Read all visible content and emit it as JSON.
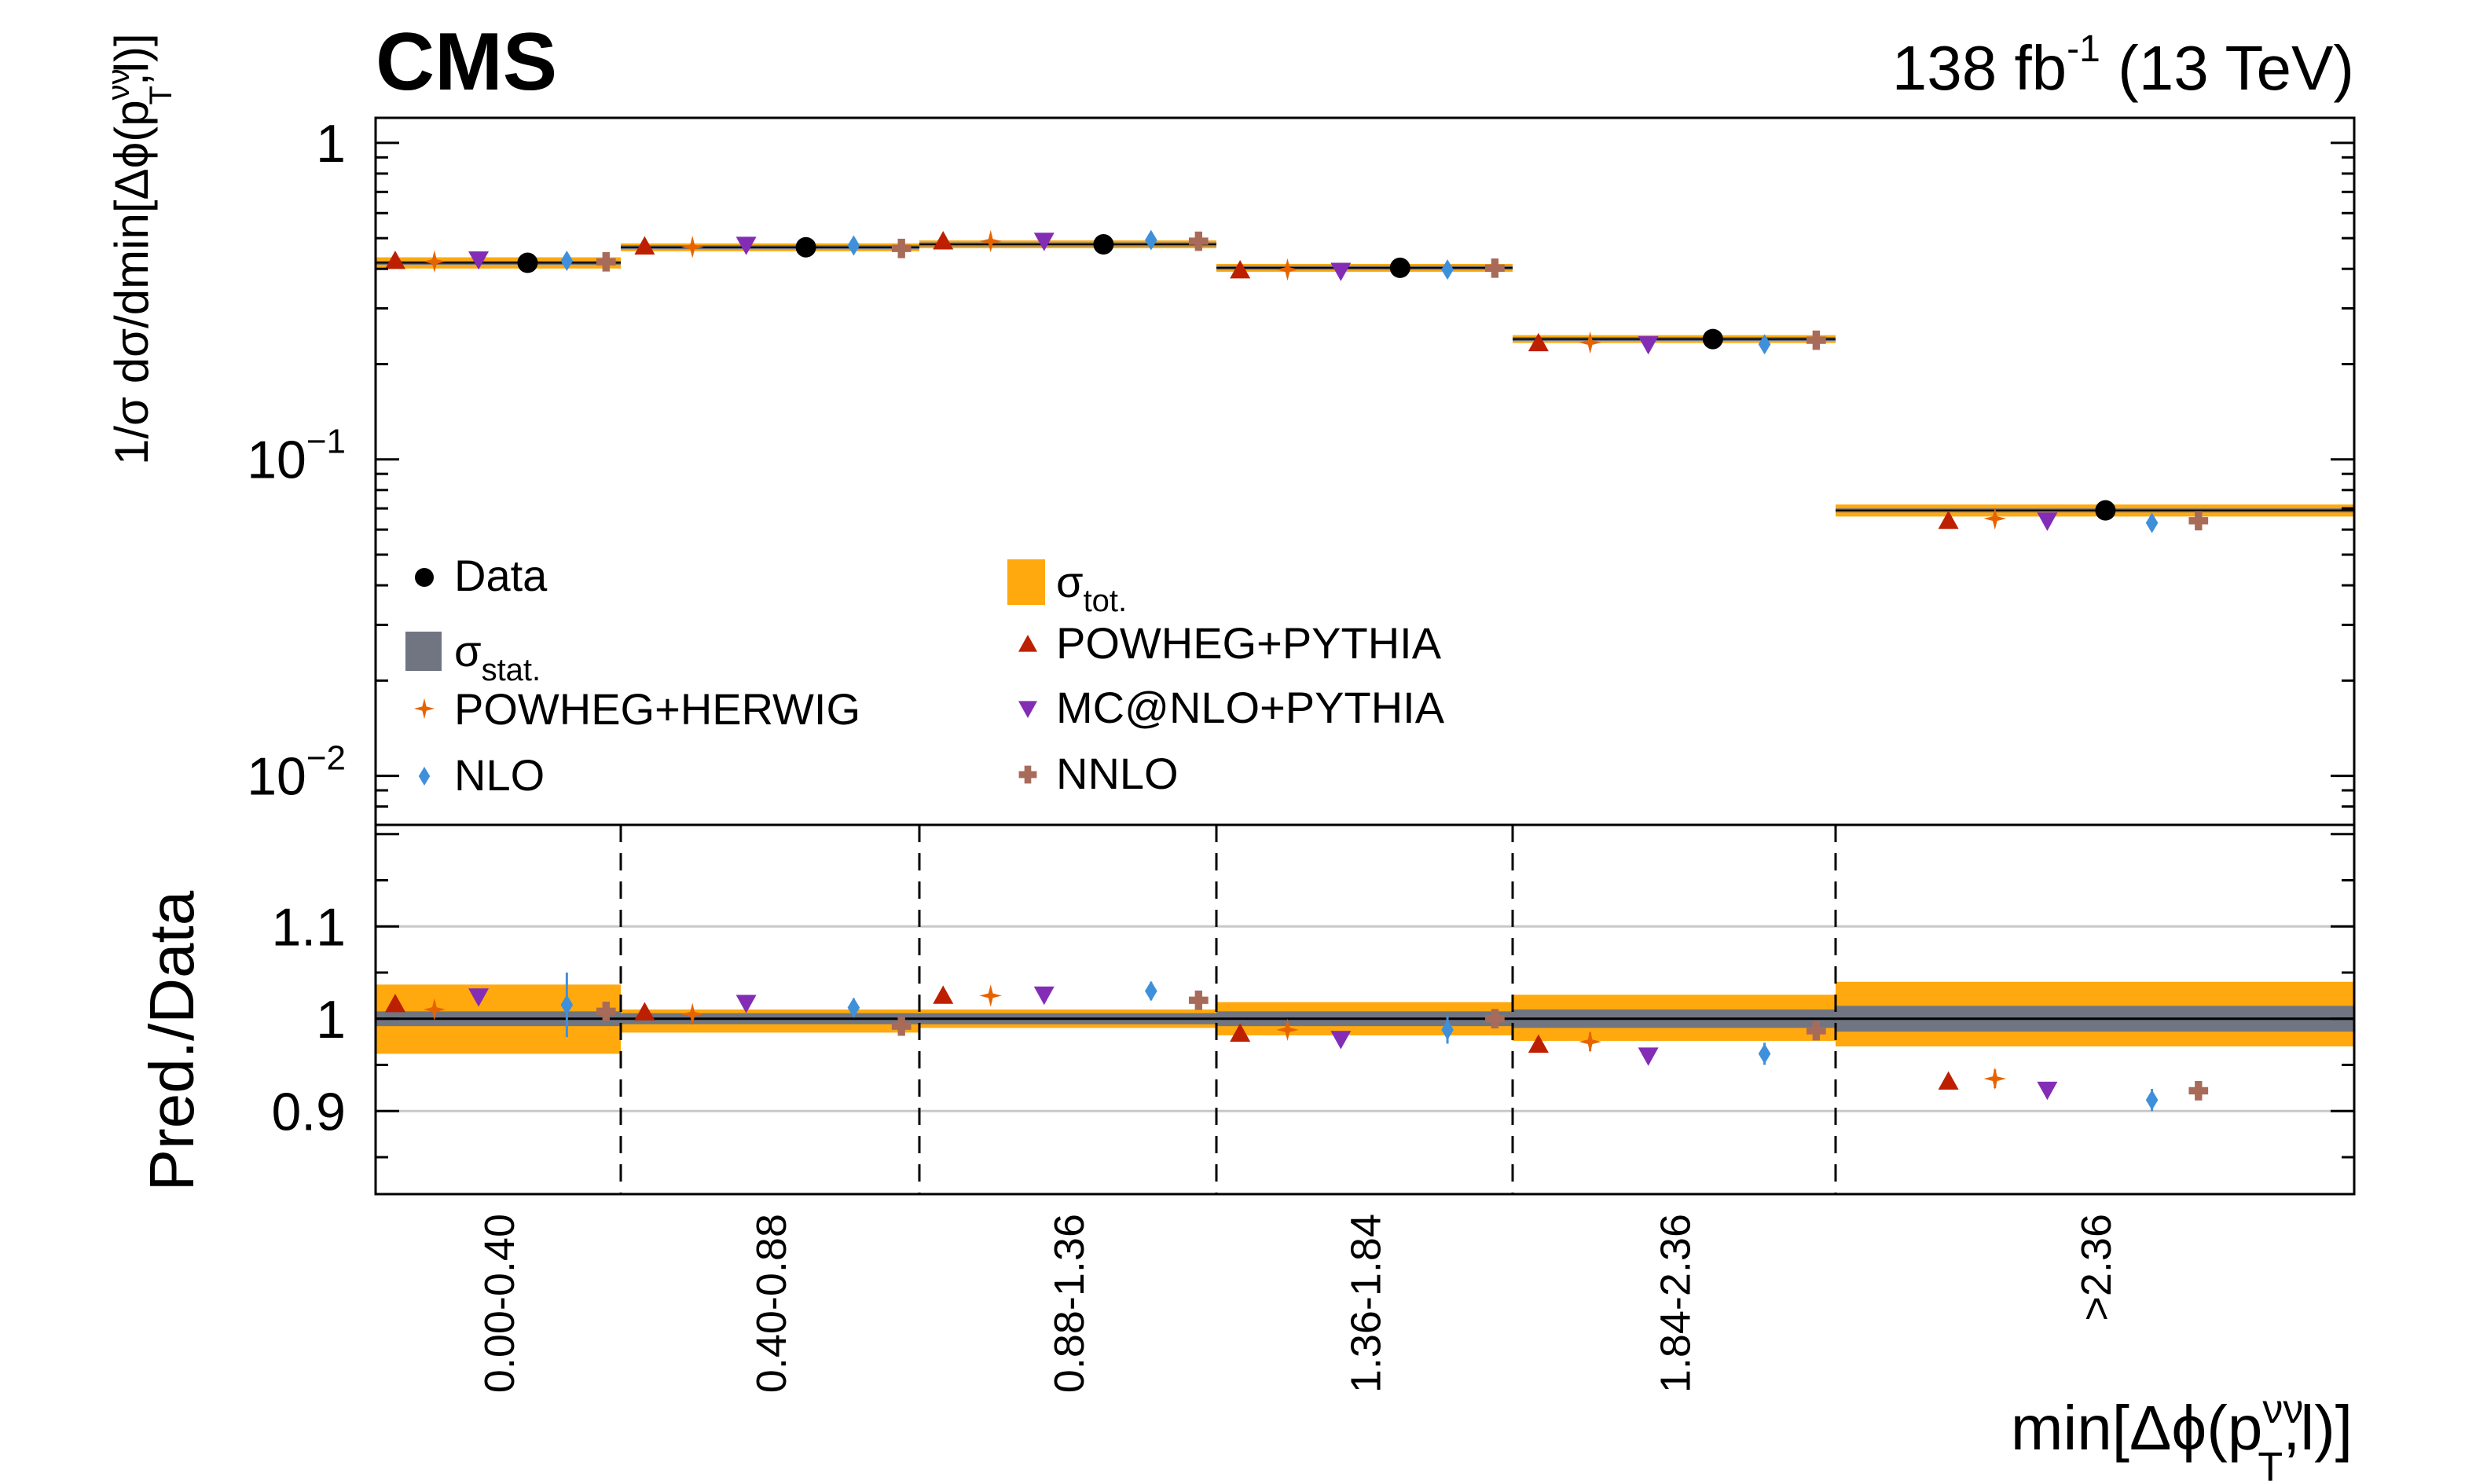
{
  "header": {
    "experiment": "CMS",
    "lumi_value": "138 fb",
    "lumi_exp": "-1",
    "energy": "(13 TeV)"
  },
  "colors": {
    "tot": "#FFA90E",
    "stat": "#717581",
    "data": "#000000",
    "POWHEG+PYTHIA": "#BD1F01",
    "POWHEG+HERWIG": "#E76300",
    "MC@NLO+PYTHIA": "#832DB6",
    "NLO": "#3F90DA",
    "NNLO": "#A96B59",
    "refline": "#c8c8c8"
  },
  "chart_data": [
    {
      "panel": "upper",
      "type": "scatter",
      "yscale": "log",
      "ylim": [
        0.007,
        1.2
      ],
      "yticks": [
        {
          "value": 1,
          "label": "1"
        },
        {
          "value": 0.1,
          "label": "10",
          "exp": "−1"
        },
        {
          "value": 0.01,
          "label": "10",
          "exp": "−2"
        }
      ],
      "ylabel": {
        "main": "1/σ dσ/dmin[Δϕ(p",
        "sup": "νν",
        "sub": "T",
        "tail": ",l)]"
      },
      "bins": [
        "0.00-0.40",
        "0.40-0.88",
        "0.88-1.36",
        "1.36-1.84",
        "1.84-2.36",
        ">2.36"
      ],
      "data": [
        0.418,
        0.468,
        0.478,
        0.403,
        0.24,
        0.069
      ],
      "tot_band": [
        0.017,
        0.006,
        0.005,
        0.009,
        0.005,
        0.003
      ],
      "stat_band": [
        0.004,
        0.003,
        0.003,
        0.003,
        0.002,
        0.001
      ],
      "series": [
        {
          "name": "POWHEG+PYTHIA",
          "marker": "triangle-up",
          "values": [
            0.424,
            0.471,
            0.489,
            0.396,
            0.233,
            0.064
          ]
        },
        {
          "name": "POWHEG+HERWIG",
          "marker": "star",
          "values": [
            0.422,
            0.469,
            0.489,
            0.398,
            0.234,
            0.065
          ]
        },
        {
          "name": "MC@NLO+PYTHIA",
          "marker": "triangle-down",
          "values": [
            0.428,
            0.476,
            0.49,
            0.394,
            0.231,
            0.064
          ]
        },
        {
          "name": "NLO",
          "marker": "diamond",
          "values": [
            0.424,
            0.474,
            0.493,
            0.398,
            0.231,
            0.063
          ]
        },
        {
          "name": "NNLO",
          "marker": "plus",
          "values": [
            0.421,
            0.464,
            0.489,
            0.402,
            0.238,
            0.064
          ]
        }
      ]
    },
    {
      "panel": "lower",
      "type": "scatter",
      "ylabel": "Pred./Data",
      "ylim": [
        0.81,
        1.21
      ],
      "yticks": [
        {
          "value": 1.1,
          "label": "1.1"
        },
        {
          "value": 1.0,
          "label": "1"
        },
        {
          "value": 0.9,
          "label": "0.9"
        }
      ],
      "xlabel": {
        "main": "min[Δϕ(p",
        "sup": "νν",
        "sub": "T",
        "tail": ",l)]"
      },
      "bins": [
        "0.00-0.40",
        "0.40-0.88",
        "0.88-1.36",
        "1.36-1.84",
        "1.84-2.36",
        ">2.36"
      ],
      "tot_band": [
        [
          0.962,
          1.037
        ],
        [
          0.985,
          1.01
        ],
        [
          0.99,
          1.01
        ],
        [
          0.982,
          1.018
        ],
        [
          0.976,
          1.026
        ],
        [
          0.97,
          1.04
        ]
      ],
      "stat_band": [
        [
          0.992,
          1.008
        ],
        [
          0.994,
          1.006
        ],
        [
          0.994,
          1.006
        ],
        [
          0.992,
          1.008
        ],
        [
          0.99,
          1.01
        ],
        [
          0.986,
          1.014
        ]
      ],
      "series": [
        {
          "name": "POWHEG+PYTHIA",
          "marker": "triangle-up",
          "values": [
            1.016,
            1.007,
            1.025,
            0.984,
            0.972,
            0.932
          ],
          "err": [
            0,
            0,
            0,
            0,
            0,
            0
          ]
        },
        {
          "name": "POWHEG+HERWIG",
          "marker": "star",
          "values": [
            1.01,
            1.005,
            1.025,
            0.988,
            0.975,
            0.935
          ],
          "err": [
            0.008,
            0.006,
            0.006,
            0.006,
            0.01,
            0.01
          ]
        },
        {
          "name": "MC@NLO+PYTHIA",
          "marker": "triangle-down",
          "values": [
            1.024,
            1.017,
            1.026,
            0.978,
            0.96,
            0.923
          ],
          "err": [
            0,
            0,
            0,
            0,
            0,
            0
          ]
        },
        {
          "name": "NLO",
          "marker": "diamond",
          "values": [
            1.015,
            1.012,
            1.03,
            0.988,
            0.962,
            0.912
          ],
          "err": [
            0.035,
            0.01,
            0.01,
            0.015,
            0.012,
            0.012
          ]
        },
        {
          "name": "NNLO",
          "marker": "plus",
          "values": [
            1.008,
            0.992,
            1.02,
            1.0,
            0.987,
            0.922
          ],
          "err": [
            0.008,
            0.008,
            0.006,
            0.008,
            0.008,
            0.006
          ]
        }
      ]
    }
  ],
  "legend": {
    "data": "Data",
    "tot_sym": "σ",
    "tot_sub": "tot.",
    "stat_sym": "σ",
    "stat_sub": "stat.",
    "powheg_pythia": "POWHEG+PYTHIA",
    "powheg_herwig": "POWHEG+HERWIG",
    "mcnlo_pythia": "MC@NLO+PYTHIA",
    "nlo": "NLO",
    "nnlo": "NNLO"
  }
}
